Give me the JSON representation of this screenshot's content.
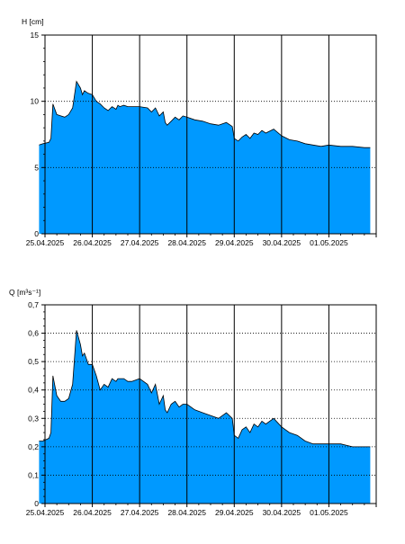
{
  "colors": {
    "fill": "#0099ff",
    "line": "#000000",
    "grid": "#000000",
    "background": "#ffffff"
  },
  "chart_data": [
    {
      "type": "area",
      "ylabel": "H [cm]",
      "ylim": [
        0,
        15
      ],
      "yticks": [
        "0",
        "5",
        "10",
        "15"
      ],
      "xlim": [
        "25.04.2025 00:00",
        "02.05.2025 00:00"
      ],
      "xticks": [
        "25.04.2025",
        "26.04.2025",
        "27.04.2025",
        "28.04.2025",
        "29.04.2025",
        "30.04.2025",
        "01.05.2025"
      ],
      "grid": "dotted horizontal at major ticks, solid vertical at day boundaries",
      "series": [
        {
          "x": [
            "24.04.2025 21:00",
            "24.04.2025 23:00",
            "25.04.2025 02:00",
            "25.04.2025 03:00",
            "25.04.2025 04:00",
            "25.04.2025 06:00",
            "25.04.2025 08:00",
            "25.04.2025 10:00",
            "25.04.2025 12:00",
            "25.04.2025 14:00",
            "25.04.2025 16:00",
            "25.04.2025 18:00",
            "25.04.2025 19:00",
            "25.04.2025 20:00",
            "25.04.2025 21:00",
            "25.04.2025 22:00",
            "26.04.2025 00:00",
            "26.04.2025 02:00",
            "26.04.2025 04:00",
            "26.04.2025 06:00",
            "26.04.2025 08:00",
            "26.04.2025 10:00",
            "26.04.2025 12:00",
            "26.04.2025 13:00",
            "26.04.2025 14:00",
            "26.04.2025 16:00",
            "26.04.2025 18:00",
            "26.04.2025 20:00",
            "27.04.2025 00:00",
            "27.04.2025 04:00",
            "27.04.2025 06:00",
            "27.04.2025 08:00",
            "27.04.2025 10:00",
            "27.04.2025 12:00",
            "27.04.2025 13:00",
            "27.04.2025 14:00",
            "27.04.2025 16:00",
            "27.04.2025 18:00",
            "27.04.2025 20:00",
            "27.04.2025 22:00",
            "28.04.2025 00:00",
            "28.04.2025 04:00",
            "28.04.2025 08:00",
            "28.04.2025 12:00",
            "28.04.2025 16:00",
            "28.04.2025 20:00",
            "28.04.2025 23:00",
            "29.04.2025 00:00",
            "29.04.2025 02:00",
            "29.04.2025 04:00",
            "29.04.2025 06:00",
            "29.04.2025 08:00",
            "29.04.2025 10:00",
            "29.04.2025 12:00",
            "29.04.2025 14:00",
            "29.04.2025 16:00",
            "29.04.2025 20:00",
            "30.04.2025 00:00",
            "30.04.2025 04:00",
            "30.04.2025 08:00",
            "30.04.2025 12:00",
            "30.04.2025 16:00",
            "30.04.2025 20:00",
            "01.05.2025 00:00",
            "01.05.2025 06:00",
            "01.05.2025 12:00",
            "01.05.2025 18:00",
            "01.05.2025 21:00"
          ],
          "values": [
            6.7,
            6.8,
            6.9,
            7.2,
            9.8,
            9.0,
            8.9,
            8.8,
            9.0,
            9.5,
            11.5,
            11.0,
            10.5,
            10.8,
            10.7,
            10.6,
            10.5,
            10.0,
            9.8,
            9.5,
            9.3,
            9.6,
            9.4,
            9.7,
            9.6,
            9.7,
            9.6,
            9.6,
            9.6,
            9.5,
            9.2,
            9.5,
            8.9,
            9.2,
            8.4,
            8.2,
            8.5,
            8.8,
            8.6,
            8.9,
            8.8,
            8.6,
            8.5,
            8.3,
            8.2,
            8.4,
            8.1,
            7.2,
            7.0,
            7.3,
            7.5,
            7.2,
            7.6,
            7.5,
            7.8,
            7.6,
            7.9,
            7.4,
            7.1,
            7.0,
            6.8,
            6.7,
            6.6,
            6.7,
            6.6,
            6.6,
            6.5,
            6.5
          ]
        }
      ]
    },
    {
      "type": "area",
      "ylabel": "Q [m³s⁻¹]",
      "ylim": [
        0,
        0.7
      ],
      "yticks": [
        "0",
        "0,1",
        "0,2",
        "0,3",
        "0,4",
        "0,5",
        "0,6",
        "0,7"
      ],
      "xlim": [
        "25.04.2025 00:00",
        "02.05.2025 00:00"
      ],
      "xticks": [
        "25.04.2025",
        "26.04.2025",
        "27.04.2025",
        "28.04.2025",
        "29.04.2025",
        "30.04.2025",
        "01.05.2025"
      ],
      "grid": "dotted horizontal at major ticks, solid vertical at day boundaries",
      "series": [
        {
          "x": [
            "24.04.2025 21:00",
            "24.04.2025 23:00",
            "25.04.2025 02:00",
            "25.04.2025 03:00",
            "25.04.2025 04:00",
            "25.04.2025 06:00",
            "25.04.2025 08:00",
            "25.04.2025 10:00",
            "25.04.2025 12:00",
            "25.04.2025 14:00",
            "25.04.2025 16:00",
            "25.04.2025 18:00",
            "25.04.2025 19:00",
            "25.04.2025 20:00",
            "25.04.2025 21:00",
            "25.04.2025 22:00",
            "26.04.2025 00:00",
            "26.04.2025 02:00",
            "26.04.2025 04:00",
            "26.04.2025 06:00",
            "26.04.2025 08:00",
            "26.04.2025 10:00",
            "26.04.2025 12:00",
            "26.04.2025 13:00",
            "26.04.2025 14:00",
            "26.04.2025 16:00",
            "26.04.2025 18:00",
            "26.04.2025 20:00",
            "27.04.2025 00:00",
            "27.04.2025 04:00",
            "27.04.2025 06:00",
            "27.04.2025 08:00",
            "27.04.2025 10:00",
            "27.04.2025 12:00",
            "27.04.2025 13:00",
            "27.04.2025 14:00",
            "27.04.2025 16:00",
            "27.04.2025 18:00",
            "27.04.2025 20:00",
            "27.04.2025 22:00",
            "28.04.2025 00:00",
            "28.04.2025 04:00",
            "28.04.2025 08:00",
            "28.04.2025 12:00",
            "28.04.2025 16:00",
            "28.04.2025 20:00",
            "28.04.2025 23:00",
            "29.04.2025 00:00",
            "29.04.2025 02:00",
            "29.04.2025 04:00",
            "29.04.2025 06:00",
            "29.04.2025 08:00",
            "29.04.2025 10:00",
            "29.04.2025 12:00",
            "29.04.2025 14:00",
            "29.04.2025 16:00",
            "29.04.2025 20:00",
            "30.04.2025 00:00",
            "30.04.2025 04:00",
            "30.04.2025 08:00",
            "30.04.2025 12:00",
            "30.04.2025 16:00",
            "30.04.2025 20:00",
            "01.05.2025 00:00",
            "01.05.2025 06:00",
            "01.05.2025 12:00",
            "01.05.2025 18:00",
            "01.05.2025 21:00"
          ],
          "values": [
            0.22,
            0.22,
            0.23,
            0.25,
            0.45,
            0.38,
            0.36,
            0.36,
            0.37,
            0.42,
            0.61,
            0.56,
            0.52,
            0.53,
            0.51,
            0.49,
            0.49,
            0.45,
            0.4,
            0.42,
            0.41,
            0.44,
            0.43,
            0.44,
            0.44,
            0.44,
            0.43,
            0.43,
            0.44,
            0.42,
            0.39,
            0.42,
            0.35,
            0.38,
            0.33,
            0.32,
            0.35,
            0.36,
            0.34,
            0.35,
            0.35,
            0.33,
            0.32,
            0.31,
            0.3,
            0.32,
            0.3,
            0.24,
            0.23,
            0.26,
            0.27,
            0.25,
            0.28,
            0.27,
            0.29,
            0.28,
            0.3,
            0.27,
            0.25,
            0.24,
            0.22,
            0.21,
            0.21,
            0.21,
            0.21,
            0.2,
            0.2,
            0.2
          ]
        }
      ]
    }
  ]
}
